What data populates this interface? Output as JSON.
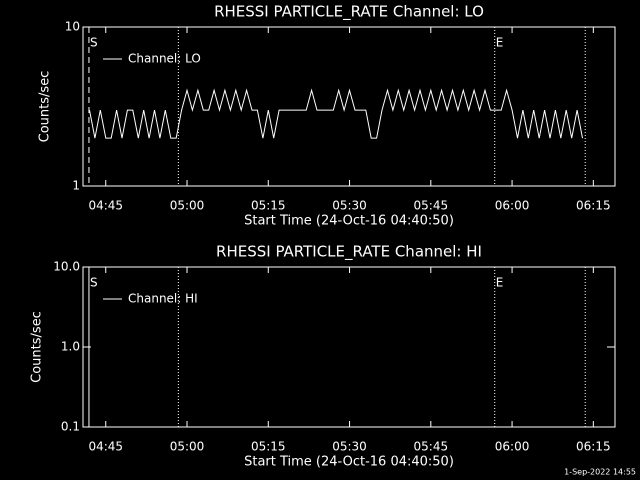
{
  "chart_data": [
    {
      "type": "line",
      "title": "RHESSI PARTICLE_RATE Channel: LO",
      "xlabel": "Start Time (24-Oct-16 04:40:50)",
      "ylabel": "Counts/sec",
      "log_y": true,
      "ylim": [
        1,
        10
      ],
      "yticks": [
        1,
        10
      ],
      "xlim": [
        280.8,
        379
      ],
      "xticks": [
        {
          "value": 285,
          "label": "04:45"
        },
        {
          "value": 300,
          "label": "05:00"
        },
        {
          "value": 315,
          "label": "05:15"
        },
        {
          "value": 330,
          "label": "05:30"
        },
        {
          "value": 345,
          "label": "05:45"
        },
        {
          "value": 360,
          "label": "06:00"
        },
        {
          "value": 375,
          "label": "06:15"
        }
      ],
      "legend": "upper left",
      "x": [
        282,
        283,
        284,
        285,
        286,
        287,
        288,
        289,
        290,
        291,
        292,
        293,
        294,
        295,
        296,
        297,
        298,
        299,
        300,
        301,
        302,
        303,
        304,
        305,
        306,
        307,
        308,
        309,
        310,
        311,
        312,
        313,
        314,
        315,
        316,
        317,
        318,
        319,
        320,
        321,
        322,
        323,
        324,
        325,
        326,
        327,
        328,
        329,
        330,
        331,
        332,
        333,
        334,
        335,
        336,
        337,
        338,
        339,
        340,
        341,
        342,
        343,
        344,
        345,
        346,
        347,
        348,
        349,
        350,
        351,
        352,
        353,
        354,
        355,
        356,
        357,
        358,
        359,
        360,
        361,
        362,
        363,
        364,
        365,
        366,
        367,
        368,
        369,
        370,
        371,
        372,
        373
      ],
      "series": [
        {
          "name": "Channel: LO",
          "color": "#ffffff",
          "values": [
            3,
            2,
            3,
            2,
            2,
            3,
            2,
            3,
            3,
            2,
            3,
            2,
            3,
            2,
            3,
            2,
            2,
            3,
            4,
            3,
            4,
            3,
            3,
            4,
            3,
            4,
            3,
            4,
            3,
            4,
            3,
            3,
            2,
            3,
            2,
            3,
            3,
            3,
            3,
            3,
            3,
            4,
            3,
            3,
            3,
            3,
            4,
            3,
            4,
            3,
            3,
            3,
            2,
            2,
            3,
            4,
            3,
            4,
            3,
            4,
            3,
            4,
            3,
            4,
            3,
            4,
            3,
            4,
            3,
            4,
            3,
            4,
            3,
            4,
            3,
            3,
            3,
            4,
            3,
            2,
            3,
            2,
            3,
            2,
            3,
            2,
            3,
            2,
            3,
            2,
            3,
            2
          ]
        }
      ],
      "markers": [
        {
          "x": 281.9,
          "label": "S",
          "style": "dashed"
        },
        {
          "x": 298.4,
          "style": "dotted"
        },
        {
          "x": 356.8,
          "label": "E",
          "style": "dotted"
        },
        {
          "x": 373.5,
          "style": "dotted"
        }
      ]
    },
    {
      "type": "line",
      "title": "RHESSI PARTICLE_RATE Channel: HI",
      "xlabel": "Start Time (24-Oct-16 04:40:50)",
      "ylabel": "Counts/sec",
      "log_y": true,
      "ylim": [
        0.1,
        10
      ],
      "yticks": [
        0.1,
        {
          "value": 1,
          "label": "1.0"
        },
        {
          "value": 10,
          "label": "10.0"
        }
      ],
      "xlim": [
        280.8,
        379
      ],
      "xticks": [
        {
          "value": 285,
          "label": "04:45"
        },
        {
          "value": 300,
          "label": "05:00"
        },
        {
          "value": 315,
          "label": "05:15"
        },
        {
          "value": 330,
          "label": "05:30"
        },
        {
          "value": 345,
          "label": "05:45"
        },
        {
          "value": 360,
          "label": "06:00"
        },
        {
          "value": 375,
          "label": "06:15"
        }
      ],
      "legend": "upper left",
      "x": [],
      "series": [
        {
          "name": "Channel: HI",
          "color": "#ffffff",
          "values": []
        }
      ],
      "markers": [
        {
          "x": 281.9,
          "label": "S",
          "style": "solid"
        },
        {
          "x": 298.4,
          "style": "dotted"
        },
        {
          "x": 356.8,
          "label": "E",
          "style": "dotted"
        },
        {
          "x": 373.5,
          "style": "dotted"
        }
      ]
    }
  ],
  "footer": "1-Sep-2022 14:55"
}
